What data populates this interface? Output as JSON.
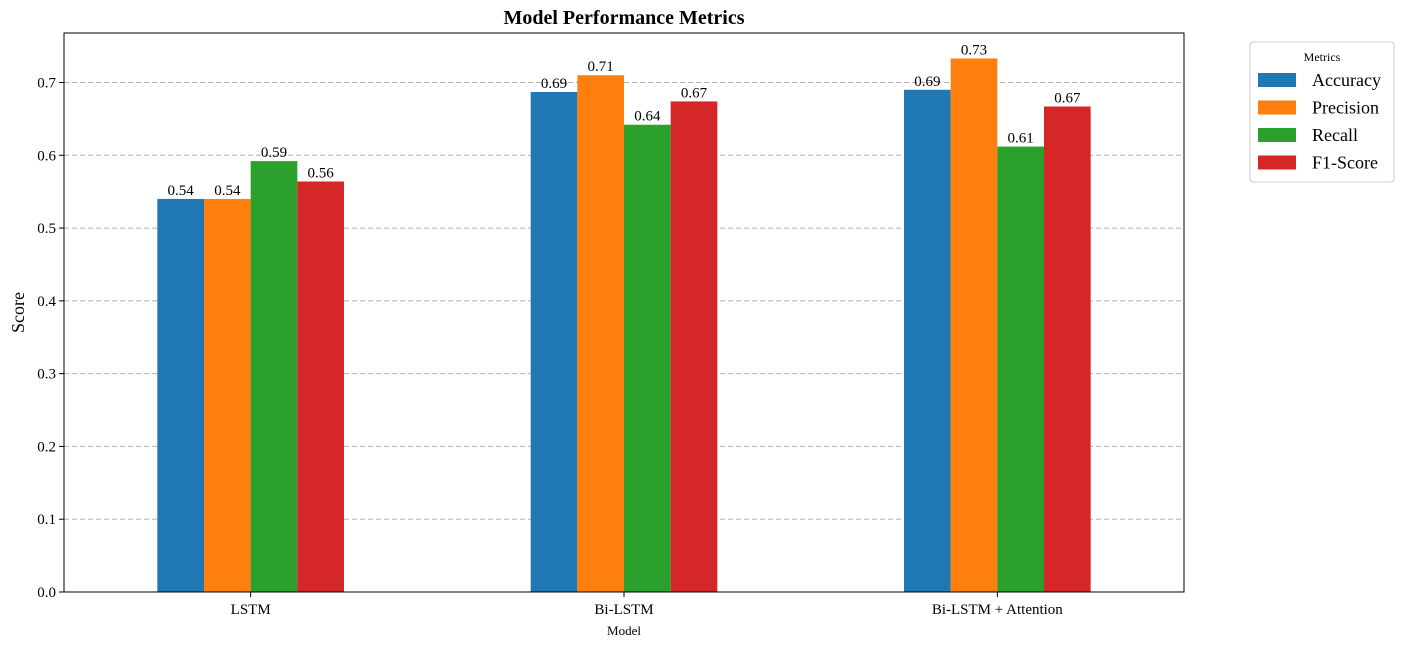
{
  "chart_data": {
    "type": "bar",
    "title": "Model Performance Metrics",
    "xlabel": "Model",
    "ylabel": "Score",
    "categories": [
      "LSTM",
      "Bi-LSTM",
      "Bi-LSTM + Attention"
    ],
    "series": [
      {
        "name": "Accuracy",
        "color": "#1f77b4",
        "values": [
          0.54,
          0.687,
          0.69
        ],
        "labels": [
          "0.54",
          "0.69",
          "0.69"
        ]
      },
      {
        "name": "Precision",
        "color": "#ff7f0e",
        "values": [
          0.54,
          0.71,
          0.733
        ],
        "labels": [
          "0.54",
          "0.71",
          "0.73"
        ]
      },
      {
        "name": "Recall",
        "color": "#2ca02c",
        "values": [
          0.592,
          0.642,
          0.612
        ],
        "labels": [
          "0.59",
          "0.64",
          "0.61"
        ]
      },
      {
        "name": "F1-Score",
        "color": "#d62728",
        "values": [
          0.564,
          0.674,
          0.667
        ],
        "labels": [
          "0.56",
          "0.67",
          "0.67"
        ]
      }
    ],
    "ylim": [
      0,
      0.768
    ],
    "yticks": [
      0.0,
      0.1,
      0.2,
      0.3,
      0.4,
      0.5,
      0.6,
      0.7
    ],
    "ytick_labels": [
      "0.0",
      "0.1",
      "0.2",
      "0.3",
      "0.4",
      "0.5",
      "0.6",
      "0.7"
    ],
    "grid": "horizontal dashed",
    "legend_title": "Metrics",
    "legend_position": "outside top-right"
  }
}
